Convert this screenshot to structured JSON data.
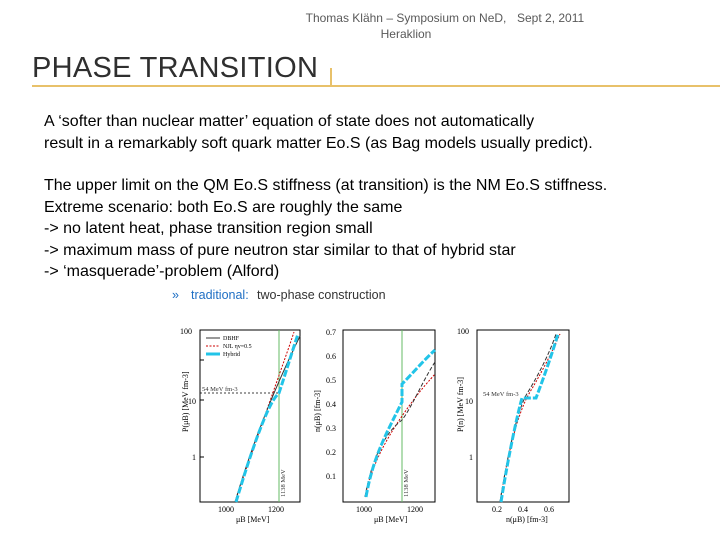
{
  "header": {
    "author_line1": "Thomas Klähn – Symposium on NeD,",
    "author_line2": "Heraklion",
    "date": "Sept 2, 2011"
  },
  "slide": {
    "title": "PHASE TRANSITION",
    "para1": [
      "A ‘softer than nuclear matter’ equation of state does not automatically",
      "result in a remarkably soft quark matter Eo.S (as Bag models usually predict)."
    ],
    "para2": [
      "The upper limit on the QM Eo.S stiffness (at transition) is the NM Eo.S stiffness.",
      "Extreme scenario: both Eo.S are roughly the same",
      "-> no latent heat, phase transition region small",
      "-> maximum mass of pure neutron star similar to that of hybrid star",
      "-> ‘masquerade’-problem (Alford)"
    ]
  },
  "figure": {
    "heading_prefix": "traditional:",
    "heading_rest": " two-phase construction",
    "legend": [
      "DBHF",
      "NJL ηv=0.5",
      "Hybrid"
    ],
    "panel1": {
      "ylabel": "P(μB) [MeV fm-3]",
      "xlabel": "μB [MeV]",
      "yticks": [
        "100",
        "10",
        "1"
      ],
      "xticks": [
        "1000",
        "1200"
      ],
      "annotation": "54 MeV fm-3",
      "vlabel": "1138 MeV"
    },
    "panel2": {
      "ylabel": "n(μB) [fm-3]",
      "xlabel": "μB [MeV]",
      "yticks": [
        "0.7",
        "0.6",
        "0.5",
        "0.4",
        "0.3",
        "0.2",
        "0.1"
      ],
      "xticks": [
        "1000",
        "1200"
      ],
      "vlabel": "1138 MeV"
    },
    "panel3": {
      "ylabel": "P(n) [MeV fm-3]",
      "xlabel": "n(μB) [fm-3]",
      "yticks": [
        "100",
        "10",
        "1"
      ],
      "xticks": [
        "0.2",
        "0.4",
        "0.6"
      ],
      "annotation": "54 MeV fm-3"
    },
    "colors": {
      "dbhf": "#333333",
      "njl": "#cc0000",
      "hybrid": "#22c4e8",
      "vline": "#66bb66",
      "heading": "#1f6fc4"
    }
  }
}
